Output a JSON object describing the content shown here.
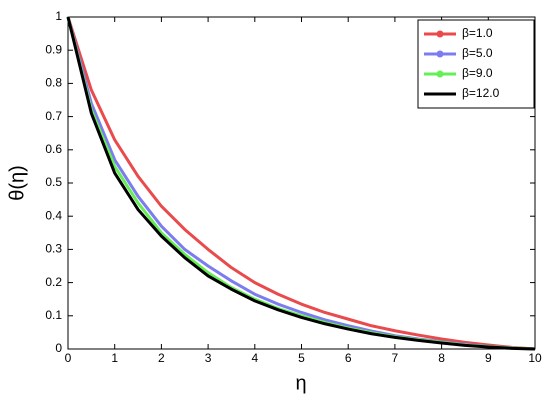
{
  "chart_data": {
    "type": "line",
    "x_label": "η",
    "y_label": "θ(η)",
    "x": [
      0,
      0.5,
      1,
      1.5,
      2,
      2.5,
      3,
      3.5,
      4,
      4.5,
      5,
      5.5,
      6,
      6.5,
      7,
      7.5,
      8,
      8.5,
      9,
      9.5,
      10
    ],
    "series": [
      {
        "name": "β=1.0",
        "color": "#e94a4c",
        "marker": true,
        "values": [
          1,
          0.78,
          0.63,
          0.52,
          0.43,
          0.36,
          0.3,
          0.245,
          0.2,
          0.165,
          0.135,
          0.11,
          0.09,
          0.07,
          0.055,
          0.042,
          0.03,
          0.02,
          0.012,
          0.005,
          0
        ]
      },
      {
        "name": "β=5.0",
        "color": "#7c7cf0",
        "marker": true,
        "values": [
          1,
          0.74,
          0.57,
          0.46,
          0.37,
          0.3,
          0.25,
          0.205,
          0.165,
          0.135,
          0.11,
          0.088,
          0.07,
          0.054,
          0.04,
          0.03,
          0.022,
          0.014,
          0.008,
          0.003,
          0
        ]
      },
      {
        "name": "β=9.0",
        "color": "#66ee55",
        "marker": true,
        "values": [
          1,
          0.72,
          0.55,
          0.44,
          0.35,
          0.285,
          0.23,
          0.185,
          0.15,
          0.122,
          0.1,
          0.08,
          0.063,
          0.049,
          0.037,
          0.028,
          0.02,
          0.012,
          0.007,
          0.003,
          0
        ]
      },
      {
        "name": "β=12.0",
        "color": "#000000",
        "marker": false,
        "values": [
          1,
          0.71,
          0.53,
          0.42,
          0.34,
          0.275,
          0.22,
          0.18,
          0.145,
          0.118,
          0.095,
          0.076,
          0.06,
          0.046,
          0.035,
          0.026,
          0.018,
          0.011,
          0.006,
          0.002,
          0
        ]
      }
    ],
    "xlim": [
      0,
      10
    ],
    "xticks": [
      0,
      1,
      2,
      3,
      4,
      5,
      6,
      7,
      8,
      9,
      10
    ],
    "ylim": [
      0,
      1
    ],
    "yticks": [
      0,
      0.1,
      0.2,
      0.3,
      0.4,
      0.5,
      0.6,
      0.7,
      0.8,
      0.9,
      1
    ],
    "grid": false,
    "legend": "upper right"
  }
}
